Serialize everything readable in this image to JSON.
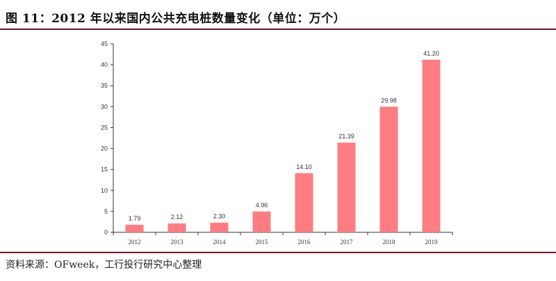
{
  "title": "图 11：2012 年以来国内公共充电桩数量变化（单位：万个）",
  "source": "资料来源：OFweek，工行投行研究中心整理",
  "chart_data": {
    "type": "bar",
    "title": "2012 年以来国内公共充电桩数量变化（单位：万个）",
    "xlabel": "",
    "ylabel": "",
    "categories": [
      "2012",
      "2013",
      "2014",
      "2015",
      "2016",
      "2017",
      "2018",
      "2019"
    ],
    "values": [
      1.79,
      2.12,
      2.3,
      4.96,
      14.1,
      21.39,
      29.98,
      41.2
    ],
    "value_labels": [
      "1.79",
      "2.12",
      "2.30",
      "4.96",
      "14.10",
      "21.39",
      "29.98",
      "41.20"
    ],
    "ylim": [
      0,
      45
    ],
    "yticks": [
      0,
      5,
      10,
      15,
      20,
      25,
      30,
      35,
      40,
      45
    ],
    "grid": false,
    "bar_color": "#ff7c80"
  }
}
